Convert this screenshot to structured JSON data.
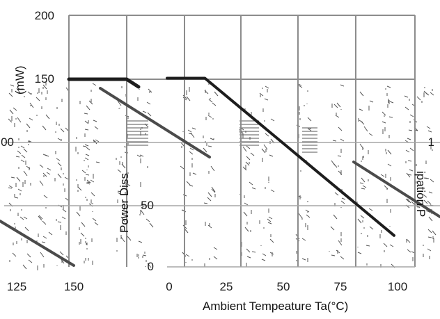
{
  "chart_data": {
    "type": "line",
    "ylabel": "Power Diss",
    "ylabel_right": "ipation  P",
    "ylabel_left": "(mW)",
    "xlabel": "Ambient Tempeature Ta(°C)",
    "x": [
      0,
      25,
      50,
      75,
      100,
      125,
      150
    ],
    "x_ticks": [
      "0",
      "25",
      "50",
      "75",
      "100"
    ],
    "x_left_ticks": [
      "125",
      "150"
    ],
    "y_ticks": [
      "0",
      "50",
      "150",
      "200"
    ],
    "y_left_ticks": [
      "00"
    ],
    "y_right_ticks": [
      "1"
    ],
    "series": [
      {
        "values": [
          150,
          150,
          125,
          100,
          75,
          50,
          25
        ]
      }
    ],
    "xlim": [
      0,
      150
    ],
    "ylim": [
      0,
      200
    ],
    "grid": true,
    "legend": "none"
  }
}
